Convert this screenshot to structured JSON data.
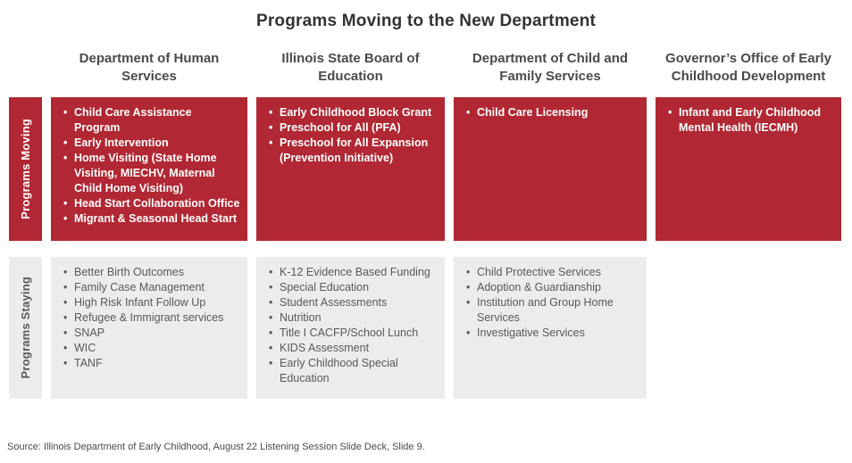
{
  "title": "Programs Moving to the New Department",
  "source": "Source: Illinois Department of Early Childhood, August 22 Listening Session Slide Deck, Slide 9.",
  "columns": [
    {
      "header": "Department of Human Services"
    },
    {
      "header": "Illinois State Board of Education"
    },
    {
      "header": "Department of Child and Family Services"
    },
    {
      "header": "Governor’s Office of Early Childhood Development"
    }
  ],
  "rows": [
    {
      "label": "Programs Moving",
      "cells": [
        [
          "Child Care Assistance Program",
          "Early Intervention",
          "Home Visiting (State Home Visiting, MIECHV, Maternal Child Home Visiting)",
          "Head Start Collaboration Office",
          "Migrant & Seasonal Head Start"
        ],
        [
          "Early Childhood Block Grant",
          "Preschool for All (PFA)",
          "Preschool for All Expansion (Prevention Initiative)"
        ],
        [
          "Child Care Licensing"
        ],
        [
          "Infant and Early Childhood Mental Health (IECMH)"
        ]
      ]
    },
    {
      "label": "Programs Staying",
      "cells": [
        [
          "Better Birth Outcomes",
          "Family Case Management",
          "High Risk Infant Follow Up",
          "Refugee & Immigrant services",
          "SNAP",
          "WIC",
          "TANF"
        ],
        [
          "K-12 Evidence Based Funding",
          "Special Education",
          "Student Assessments",
          "Nutrition",
          "Title I CACFP/School Lunch",
          "KIDS Assessment",
          "Early Childhood Special Education"
        ],
        [
          "Child Protective Services",
          "Adoption & Guardianship",
          "Institution and Group Home Services",
          "Investigative Services"
        ],
        []
      ]
    }
  ],
  "colors": {
    "moving_bg": "#B12733",
    "moving_text": "#FFFFFF",
    "staying_bg": "#ECECEC",
    "staying_text": "#595959",
    "header_text": "#4A4A4A",
    "title_text": "#333333"
  }
}
